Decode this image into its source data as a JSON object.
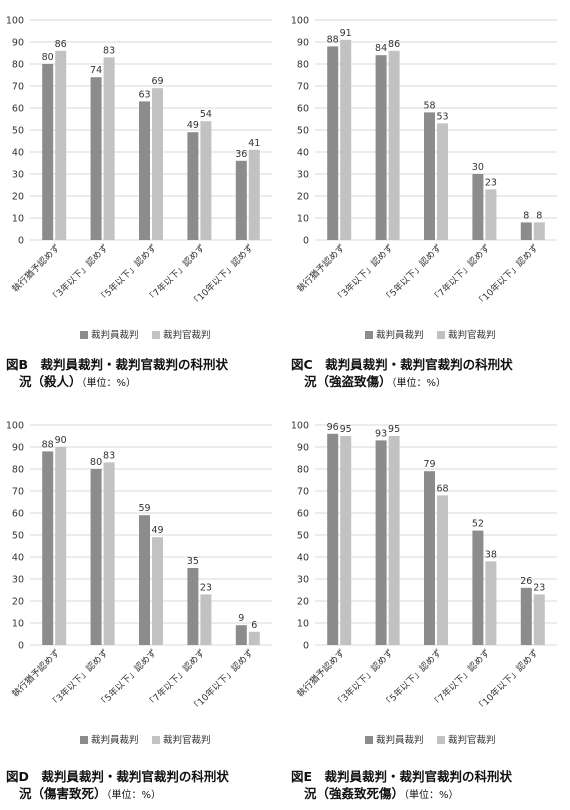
{
  "legend": {
    "series1": "裁判員裁判",
    "series2": "裁判官裁判"
  },
  "colors": {
    "series1": "#8c8c8c",
    "series2": "#c2c2c2",
    "grid": "#d9d9d9",
    "axis_text": "#333333"
  },
  "chart_data": [
    {
      "type": "bar",
      "caption_line1": "図B　裁判員裁判・裁判官裁判の科刑状",
      "caption_line2": "況（殺人）",
      "unit": "（単位：%）",
      "categories": [
        "執行猶予認めず",
        "「3年以下」認めず",
        "「5年以下」認めず",
        "「7年以下」認めず",
        "「10年以下」認めず"
      ],
      "series": [
        {
          "name": "裁判員裁判",
          "values": [
            80,
            74,
            63,
            49,
            36
          ]
        },
        {
          "name": "裁判官裁判",
          "values": [
            86,
            83,
            69,
            54,
            41
          ]
        }
      ],
      "ylim": [
        0,
        100
      ],
      "yticks": [
        0,
        10,
        20,
        30,
        40,
        50,
        60,
        70,
        80,
        90,
        100
      ],
      "grid": true,
      "legend_position": "bottom"
    },
    {
      "type": "bar",
      "caption_line1": "図C　裁判員裁判・裁判官裁判の科刑状",
      "caption_line2": "況（強盗致傷）",
      "unit": "（単位：%）",
      "categories": [
        "執行猶予認めず",
        "「3年以下」認めず",
        "「5年以下」認めず",
        "「7年以下」認めず",
        "「10年以下」認めず"
      ],
      "series": [
        {
          "name": "裁判員裁判",
          "values": [
            88,
            84,
            58,
            30,
            8
          ]
        },
        {
          "name": "裁判官裁判",
          "values": [
            91,
            86,
            53,
            23,
            8
          ]
        }
      ],
      "ylim": [
        0,
        100
      ],
      "yticks": [
        0,
        10,
        20,
        30,
        40,
        50,
        60,
        70,
        80,
        90,
        100
      ],
      "grid": true,
      "legend_position": "bottom"
    },
    {
      "type": "bar",
      "caption_line1": "図D　裁判員裁判・裁判官裁判の科刑状",
      "caption_line2": "況（傷害致死）",
      "unit": "（単位：%）",
      "categories": [
        "執行猶予認めず",
        "「3年以下」認めず",
        "「5年以下」認めず",
        "「7年以下」認めず",
        "「10年以下」認めず"
      ],
      "series": [
        {
          "name": "裁判員裁判",
          "values": [
            88,
            80,
            59,
            35,
            9
          ]
        },
        {
          "name": "裁判官裁判",
          "values": [
            90,
            83,
            49,
            23,
            6
          ]
        }
      ],
      "ylim": [
        0,
        100
      ],
      "yticks": [
        0,
        10,
        20,
        30,
        40,
        50,
        60,
        70,
        80,
        90,
        100
      ],
      "grid": true,
      "legend_position": "bottom"
    },
    {
      "type": "bar",
      "caption_line1": "図E　裁判員裁判・裁判官裁判の科刑状",
      "caption_line2": "況（強姦致死傷）",
      "unit": "（単位：%）",
      "categories": [
        "執行猶予認めず",
        "「3年以下」認めず",
        "「5年以下」認めず",
        "「7年以下」認めず",
        "「10年以下」認めず"
      ],
      "series": [
        {
          "name": "裁判員裁判",
          "values": [
            96,
            93,
            79,
            52,
            26
          ]
        },
        {
          "name": "裁判官裁判",
          "values": [
            95,
            95,
            68,
            38,
            23
          ]
        }
      ],
      "ylim": [
        0,
        100
      ],
      "yticks": [
        0,
        10,
        20,
        30,
        40,
        50,
        60,
        70,
        80,
        90,
        100
      ],
      "grid": true,
      "legend_position": "bottom"
    }
  ]
}
